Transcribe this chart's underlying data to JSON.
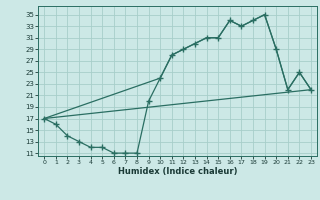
{
  "xlabel": "Humidex (Indice chaleur)",
  "bg_color": "#cce8e6",
  "grid_color": "#a8ceca",
  "line_color": "#2a6e62",
  "xlim": [
    -0.5,
    23.5
  ],
  "ylim": [
    10.5,
    36.5
  ],
  "xticks": [
    0,
    1,
    2,
    3,
    4,
    5,
    6,
    7,
    8,
    9,
    10,
    11,
    12,
    13,
    14,
    15,
    16,
    17,
    18,
    19,
    20,
    21,
    22,
    23
  ],
  "yticks": [
    11,
    13,
    15,
    17,
    19,
    21,
    23,
    25,
    27,
    29,
    31,
    33,
    35
  ],
  "curve1_x": [
    0,
    1,
    2,
    3,
    4,
    5,
    6,
    7,
    8,
    9,
    10,
    11,
    12,
    13,
    14,
    15,
    16,
    17,
    18,
    19,
    20,
    21,
    22,
    23
  ],
  "curve1_y": [
    17,
    16,
    14,
    13,
    12,
    12,
    11,
    11,
    11,
    20,
    24,
    28,
    29,
    30,
    31,
    31,
    34,
    33,
    34,
    35,
    29,
    22,
    25,
    22
  ],
  "curve2_x": [
    0,
    23
  ],
  "curve2_y": [
    17,
    22
  ],
  "curve3_x": [
    0,
    10,
    11,
    12,
    13,
    14,
    15,
    16,
    17,
    18,
    19,
    20,
    21,
    22,
    23
  ],
  "curve3_y": [
    17,
    24,
    28,
    29,
    30,
    31,
    31,
    34,
    33,
    34,
    35,
    29,
    22,
    25,
    22
  ]
}
